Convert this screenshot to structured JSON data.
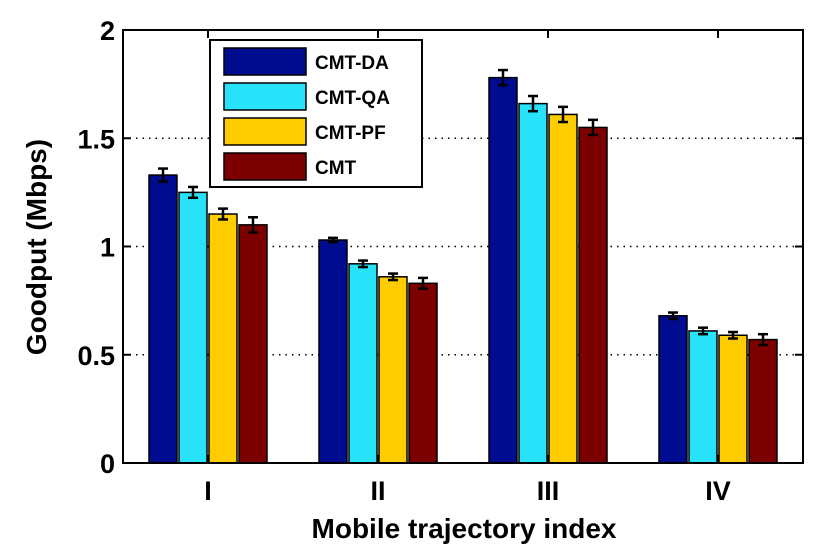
{
  "chart_data": {
    "type": "bar",
    "title": "",
    "xlabel": "Mobile trajectory index",
    "ylabel": "Goodput (Mbps)",
    "ylim": [
      0,
      2
    ],
    "yticks": [
      0,
      0.5,
      1,
      1.5,
      2
    ],
    "ytick_labels": [
      "0",
      "0.5",
      "1",
      "1.5",
      "2"
    ],
    "grid": "horizontal-dotted",
    "legend_position": "top-left",
    "categories": [
      "I",
      "II",
      "III",
      "IV"
    ],
    "series": [
      {
        "name": "CMT-DA",
        "color": "#000c8f",
        "values": [
          1.33,
          1.03,
          1.78,
          0.68
        ],
        "errors": [
          0.03,
          0.01,
          0.035,
          0.015
        ]
      },
      {
        "name": "CMT-QA",
        "color": "#28e2fa",
        "values": [
          1.25,
          0.92,
          1.66,
          0.61
        ],
        "errors": [
          0.025,
          0.015,
          0.035,
          0.015
        ]
      },
      {
        "name": "CMT-PF",
        "color": "#ffcc00",
        "values": [
          1.15,
          0.86,
          1.61,
          0.59
        ],
        "errors": [
          0.025,
          0.015,
          0.035,
          0.015
        ]
      },
      {
        "name": "CMT",
        "color": "#7d0000",
        "values": [
          1.1,
          0.83,
          1.55,
          0.57
        ],
        "errors": [
          0.035,
          0.025,
          0.035,
          0.025
        ]
      }
    ]
  }
}
